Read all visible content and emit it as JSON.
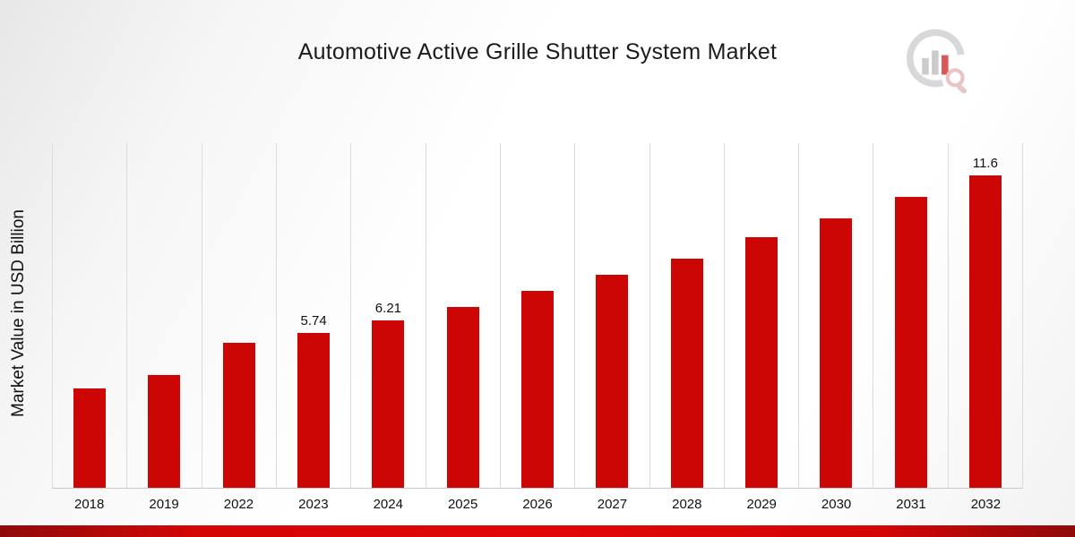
{
  "accent_color": "#cc0505",
  "chart_data": {
    "type": "bar",
    "title": "Automotive Active Grille Shutter System Market",
    "xlabel": "",
    "ylabel": "Market Value in USD Billion",
    "categories": [
      "2018",
      "2019",
      "2022",
      "2023",
      "2024",
      "2025",
      "2026",
      "2027",
      "2028",
      "2029",
      "2030",
      "2031",
      "2032"
    ],
    "values": [
      3.7,
      4.2,
      5.4,
      5.74,
      6.21,
      6.7,
      7.3,
      7.9,
      8.5,
      9.3,
      10.0,
      10.8,
      11.6
    ],
    "data_labels": [
      "",
      "",
      "",
      "5.74",
      "6.21",
      "",
      "",
      "",
      "",
      "",
      "",
      "",
      "11.6"
    ],
    "ylim": [
      0,
      12.8
    ],
    "bar_color": "#cc0505",
    "grid": "vertical-only",
    "legend": "none"
  },
  "logo": {
    "name": "market-research-logo"
  }
}
